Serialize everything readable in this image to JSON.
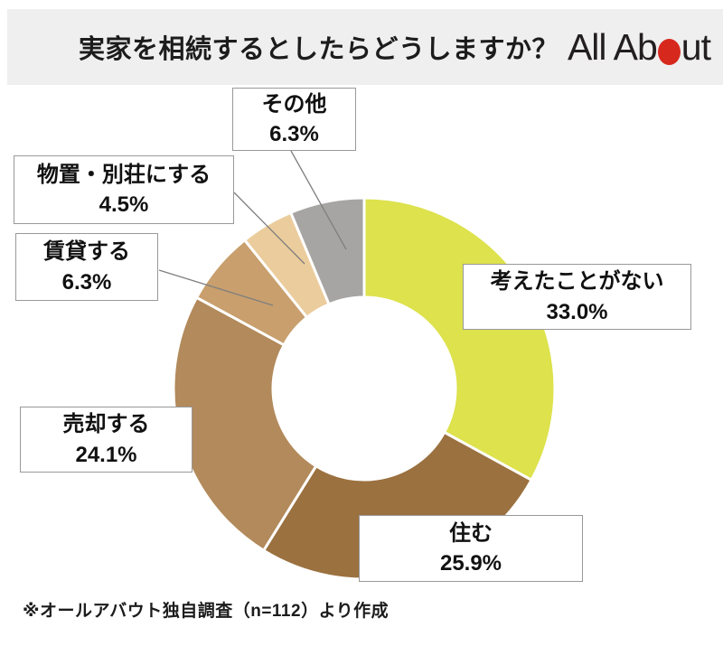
{
  "header": {
    "title": "実家を相続するとしたらどうしますか？",
    "logo": {
      "name": "All About",
      "part1": "All Ab",
      "part2": "ut",
      "dot_color": "#d7281e"
    }
  },
  "chart_data": {
    "type": "pie",
    "subtype": "donut",
    "title": "実家を相続するとしたらどうしますか？",
    "direction": "clockwise",
    "start_angle_deg": 0,
    "inner_radius_ratio": 0.48,
    "legend_position": "none",
    "segments": [
      {
        "label": "考えたことがない",
        "value": 33.0,
        "percent_label": "33.0%",
        "color": "#dde24d"
      },
      {
        "label": "住む",
        "value": 25.9,
        "percent_label": "25.9%",
        "color": "#9b7140"
      },
      {
        "label": "売却する",
        "value": 24.1,
        "percent_label": "24.1%",
        "color": "#b28a5b"
      },
      {
        "label": "賃貸する",
        "value": 6.3,
        "percent_label": "6.3%",
        "color": "#c89f6d"
      },
      {
        "label": "物置・別荘にする",
        "value": 4.5,
        "percent_label": "4.5%",
        "color": "#ebcc9c"
      },
      {
        "label": "その他",
        "value": 6.3,
        "percent_label": "6.3%",
        "color": "#a6a5a3"
      }
    ],
    "source_note": "※オールアバウト独自調査（n=112）より作成"
  },
  "footer": {
    "note": "※オールアバウト独自調査（n=112）より作成"
  }
}
